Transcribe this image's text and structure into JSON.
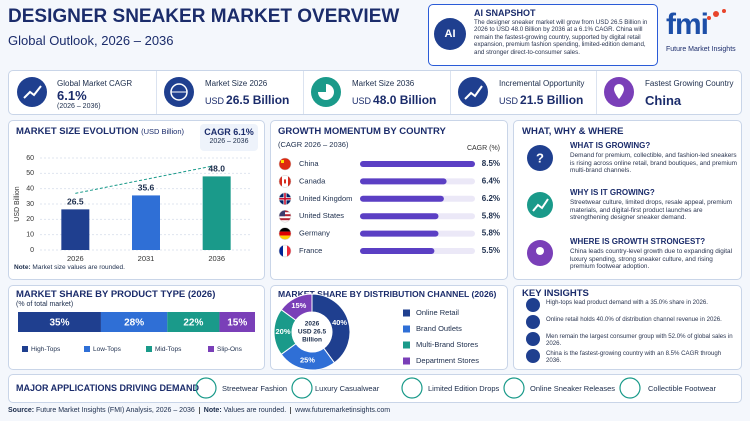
{
  "header": {
    "title": "DESIGNER SNEAKER MARKET OVERVIEW",
    "subtitle": "Global Outlook, 2026 – 2036"
  },
  "ai_snapshot": {
    "icon_label": "AI",
    "title": "AI SNAPSHOT",
    "text": "The designer sneaker market will grow from USD 26.5 Billion in 2026 to USD 48.0 Billion by 2036 at a 6.1% CAGR. China will remain the fastest-growing country, supported by digital retail expansion, premium fashion spending, limited-edition demand, and stronger direct-to-consumer sales."
  },
  "logo": {
    "mark": "fmi",
    "name": "Future Market Insights"
  },
  "kpis": [
    {
      "label": "Global Market CAGR",
      "value": "6.1%",
      "note": "(2026 – 2036)"
    },
    {
      "label": "Market Size 2026",
      "unit": "USD",
      "value": "26.5 Billion"
    },
    {
      "label": "Market Size 2036",
      "unit": "USD",
      "value": "48.0 Billion"
    },
    {
      "label": "Incremental Opportunity",
      "unit": "USD",
      "value": "21.5 Billion"
    },
    {
      "label": "Fastest Growing Country",
      "value": "China"
    }
  ],
  "chart_data": [
    {
      "type": "bar",
      "title": "MARKET SIZE EVOLUTION",
      "unit": "(USD Billion)",
      "ylabel": "USD Billion",
      "categories": [
        "2026",
        "2031",
        "2036"
      ],
      "values": [
        26.5,
        35.6,
        48.0
      ],
      "value_labels": [
        "26.5",
        "35.6",
        "48.0"
      ],
      "colors": [
        "#1f3f8f",
        "#2f6fd6",
        "#1a9a8a"
      ],
      "ylim": [
        0,
        60
      ],
      "yticks": [
        0,
        10,
        20,
        30,
        40,
        50,
        60
      ],
      "grid": true,
      "annotation": {
        "title": "CAGR 6.1%",
        "period": "2026 – 2036"
      },
      "note_label": "Note:",
      "note": "Market size values are rounded."
    },
    {
      "type": "hbar",
      "title": "GROWTH MOMENTUM BY COUNTRY",
      "subtitle": "(CAGR 2026 – 2036)",
      "value_header": "CAGR (%)",
      "categories": [
        "China",
        "Canada",
        "United Kingdom",
        "United States",
        "Germany",
        "France"
      ],
      "values": [
        8.5,
        6.4,
        6.2,
        5.8,
        5.8,
        5.5
      ],
      "value_labels": [
        "8.5%",
        "6.4%",
        "6.2%",
        "5.8%",
        "5.8%",
        "5.5%"
      ],
      "color": "#5b3fc4"
    },
    {
      "type": "stacked_bar",
      "title": "MARKET SHARE BY PRODUCT TYPE (2026)",
      "subtitle": "(% of total market)",
      "series": [
        {
          "name": "High-Tops",
          "color": "#1f3f8f",
          "values": [
            35
          ],
          "value_labels": [
            "35%"
          ]
        },
        {
          "name": "Low-Tops",
          "color": "#2f6fd6",
          "values": [
            28
          ],
          "value_labels": [
            "28%"
          ]
        },
        {
          "name": "Mid-Tops",
          "color": "#1a9a8a",
          "values": [
            22
          ],
          "value_labels": [
            "22%"
          ]
        },
        {
          "name": "Slip-Ons",
          "color": "#7a3fb8",
          "values": [
            15
          ],
          "value_labels": [
            "15%"
          ]
        }
      ]
    },
    {
      "type": "donut",
      "title": "MARKET SHARE BY DISTRIBUTION CHANNEL (2026)",
      "center_label": [
        "2026",
        "USD 26.5",
        "Billion"
      ],
      "categories": [
        "Online Retail",
        "Brand Outlets",
        "Multi-Brand Stores",
        "Department Stores"
      ],
      "values": [
        40,
        25,
        20,
        15
      ],
      "value_labels": [
        "40%",
        "25%",
        "20%",
        "15%"
      ],
      "colors": [
        "#1f3f8f",
        "#2f6fd6",
        "#1a9a8a",
        "#7a3fb8"
      ]
    }
  ],
  "what_why_where": {
    "title": "WHAT, WHY & WHERE",
    "items": [
      {
        "title": "WHAT IS GROWING?",
        "text": "Demand for premium, collectible, and fashion-led sneakers is rising across online retail, brand boutiques, and premium multi-brand channels."
      },
      {
        "title": "WHY IS IT GROWING?",
        "text": "Streetwear culture, limited drops, resale appeal, premium materials, and digital-first product launches are strengthening designer sneaker demand."
      },
      {
        "title": "WHERE IS GROWTH STRONGEST?",
        "text": "China leads country-level growth due to expanding digital luxury spending, strong sneaker culture, and rising premium footwear adoption."
      }
    ]
  },
  "key_insights": {
    "title": "KEY INSIGHTS",
    "items": [
      "High-tops lead product demand with a 35.0% share in 2026.",
      "Online retail holds 40.0% of distribution channel revenue in 2026.",
      "Men remain the largest consumer group with 52.0% of global sales in 2026.",
      "China is the fastest-growing country with an 8.5% CAGR through 2036."
    ]
  },
  "applications": {
    "title": "MAJOR APPLICATIONS DRIVING DEMAND",
    "items": [
      "Streetwear Fashion",
      "Luxury Casualwear",
      "Limited Edition Drops",
      "Online Sneaker Releases",
      "Collectible Footwear"
    ]
  },
  "footer": {
    "source_label": "Source:",
    "source": "Future Market Insights (FMI) Analysis, 2026 – 2036",
    "note_label": "Note:",
    "note": "Values are rounded.",
    "url": "www.futuremarketinsights.com"
  }
}
